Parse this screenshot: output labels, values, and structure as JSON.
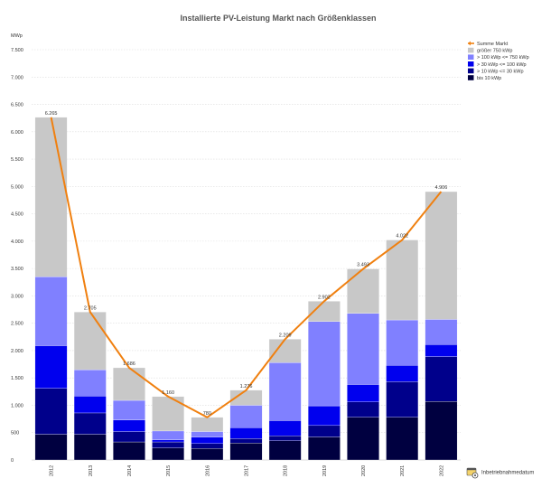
{
  "chart_data": {
    "type": "bar",
    "stacked": true,
    "title": "Installierte PV-Leistung Markt nach Größenklassen",
    "ylabel": "MWp",
    "xlabel": "",
    "ylim": [
      0,
      7500
    ],
    "yticks": [
      0,
      500,
      1000,
      1500,
      2000,
      2500,
      3000,
      3500,
      4000,
      4500,
      5000,
      5500,
      6000,
      6500,
      7000,
      7500
    ],
    "ytick_labels": [
      "0",
      "500",
      "1.000",
      "1.500",
      "2.000",
      "2.500",
      "3.000",
      "3.500",
      "4.000",
      "4.500",
      "5.000",
      "5.500",
      "6.000",
      "6.500",
      "7.000",
      "7.500"
    ],
    "grid": true,
    "legend_position": "top-right",
    "categories": [
      "2012",
      "2013",
      "2014",
      "2015",
      "2016",
      "2017",
      "2018",
      "2019",
      "2020",
      "2021",
      "2022"
    ],
    "series": [
      {
        "name": "bis 10 kWp",
        "color": "#000040",
        "values": [
          470,
          470,
          330,
          220,
          210,
          310,
          350,
          420,
          780,
          780,
          1070
        ]
      },
      {
        "name": "> 10 kWp <= 30 kWp",
        "color": "#00008b",
        "values": [
          840,
          390,
          190,
          110,
          90,
          80,
          90,
          210,
          280,
          650,
          820
        ]
      },
      {
        "name": "> 30 kWp <= 100 kWp",
        "color": "#0000ee",
        "values": [
          780,
          310,
          210,
          40,
          120,
          200,
          280,
          360,
          320,
          300,
          220
        ]
      },
      {
        "name": "> 100 kWp <= 750 kWp",
        "color": "#8080ff",
        "values": [
          1260,
          480,
          360,
          160,
          100,
          410,
          1060,
          1540,
          1300,
          830,
          460
        ]
      },
      {
        "name": "größer 750 kWp",
        "color": "#c8c8c8",
        "values": [
          2915,
          1055,
          596,
          630,
          260,
          276,
          429,
          372,
          813,
          1462,
          2336
        ]
      }
    ],
    "total_series": {
      "name": "Summe Markt",
      "color": "#f08010",
      "values": [
        6265,
        2705,
        1686,
        1160,
        780,
        1276,
        2209,
        2902,
        3493,
        4022,
        4906
      ],
      "labels": [
        "6.265",
        "2.705",
        "1.686",
        "1.160",
        "780",
        "1.276",
        "2.209",
        "2.902",
        "3.493",
        "4.022",
        "4.906"
      ]
    },
    "legend_order": [
      "Summe Markt",
      "größer 750 kWp",
      "> 100 kWp <= 750 kWp",
      "> 30 kWp <= 100 kWp",
      "> 10 kWp <= 30 kWp",
      "bis 10 kWp"
    ]
  },
  "footer": {
    "label": "Inbetriebnahmedatum",
    "icon": "calendar-gear-icon"
  }
}
